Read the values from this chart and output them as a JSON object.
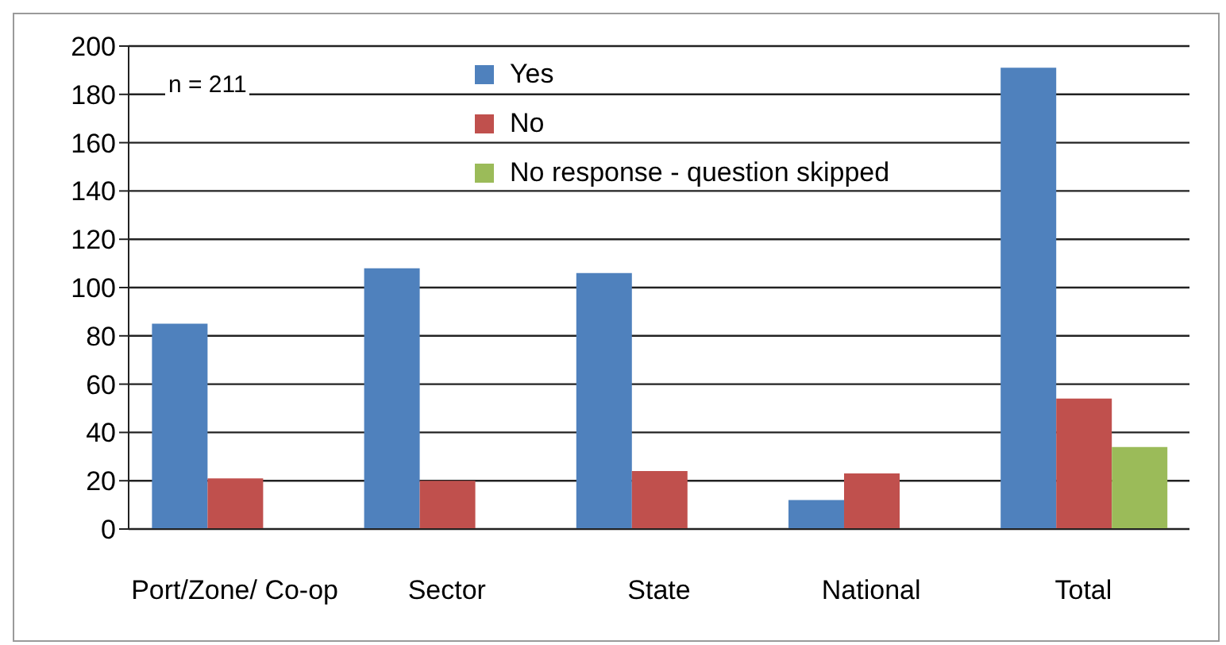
{
  "chart_data": {
    "type": "bar",
    "categories": [
      "Port/Zone/ Co-op",
      "Sector",
      "State",
      "National",
      "Total"
    ],
    "series": [
      {
        "name": "Yes",
        "color": "#4f81bd",
        "values": [
          85,
          108,
          106,
          12,
          191
        ]
      },
      {
        "name": "No",
        "color": "#c0504d",
        "values": [
          21,
          20,
          24,
          23,
          54
        ]
      },
      {
        "name": "No response - question skipped",
        "color": "#9bbb59",
        "values": [
          null,
          null,
          null,
          null,
          34
        ]
      }
    ],
    "ylim": [
      0,
      200
    ],
    "yticks": [
      0,
      20,
      40,
      60,
      80,
      100,
      120,
      140,
      160,
      180,
      200
    ],
    "grid": "y",
    "legend": "top",
    "annotations": [
      "n = 211"
    ]
  }
}
